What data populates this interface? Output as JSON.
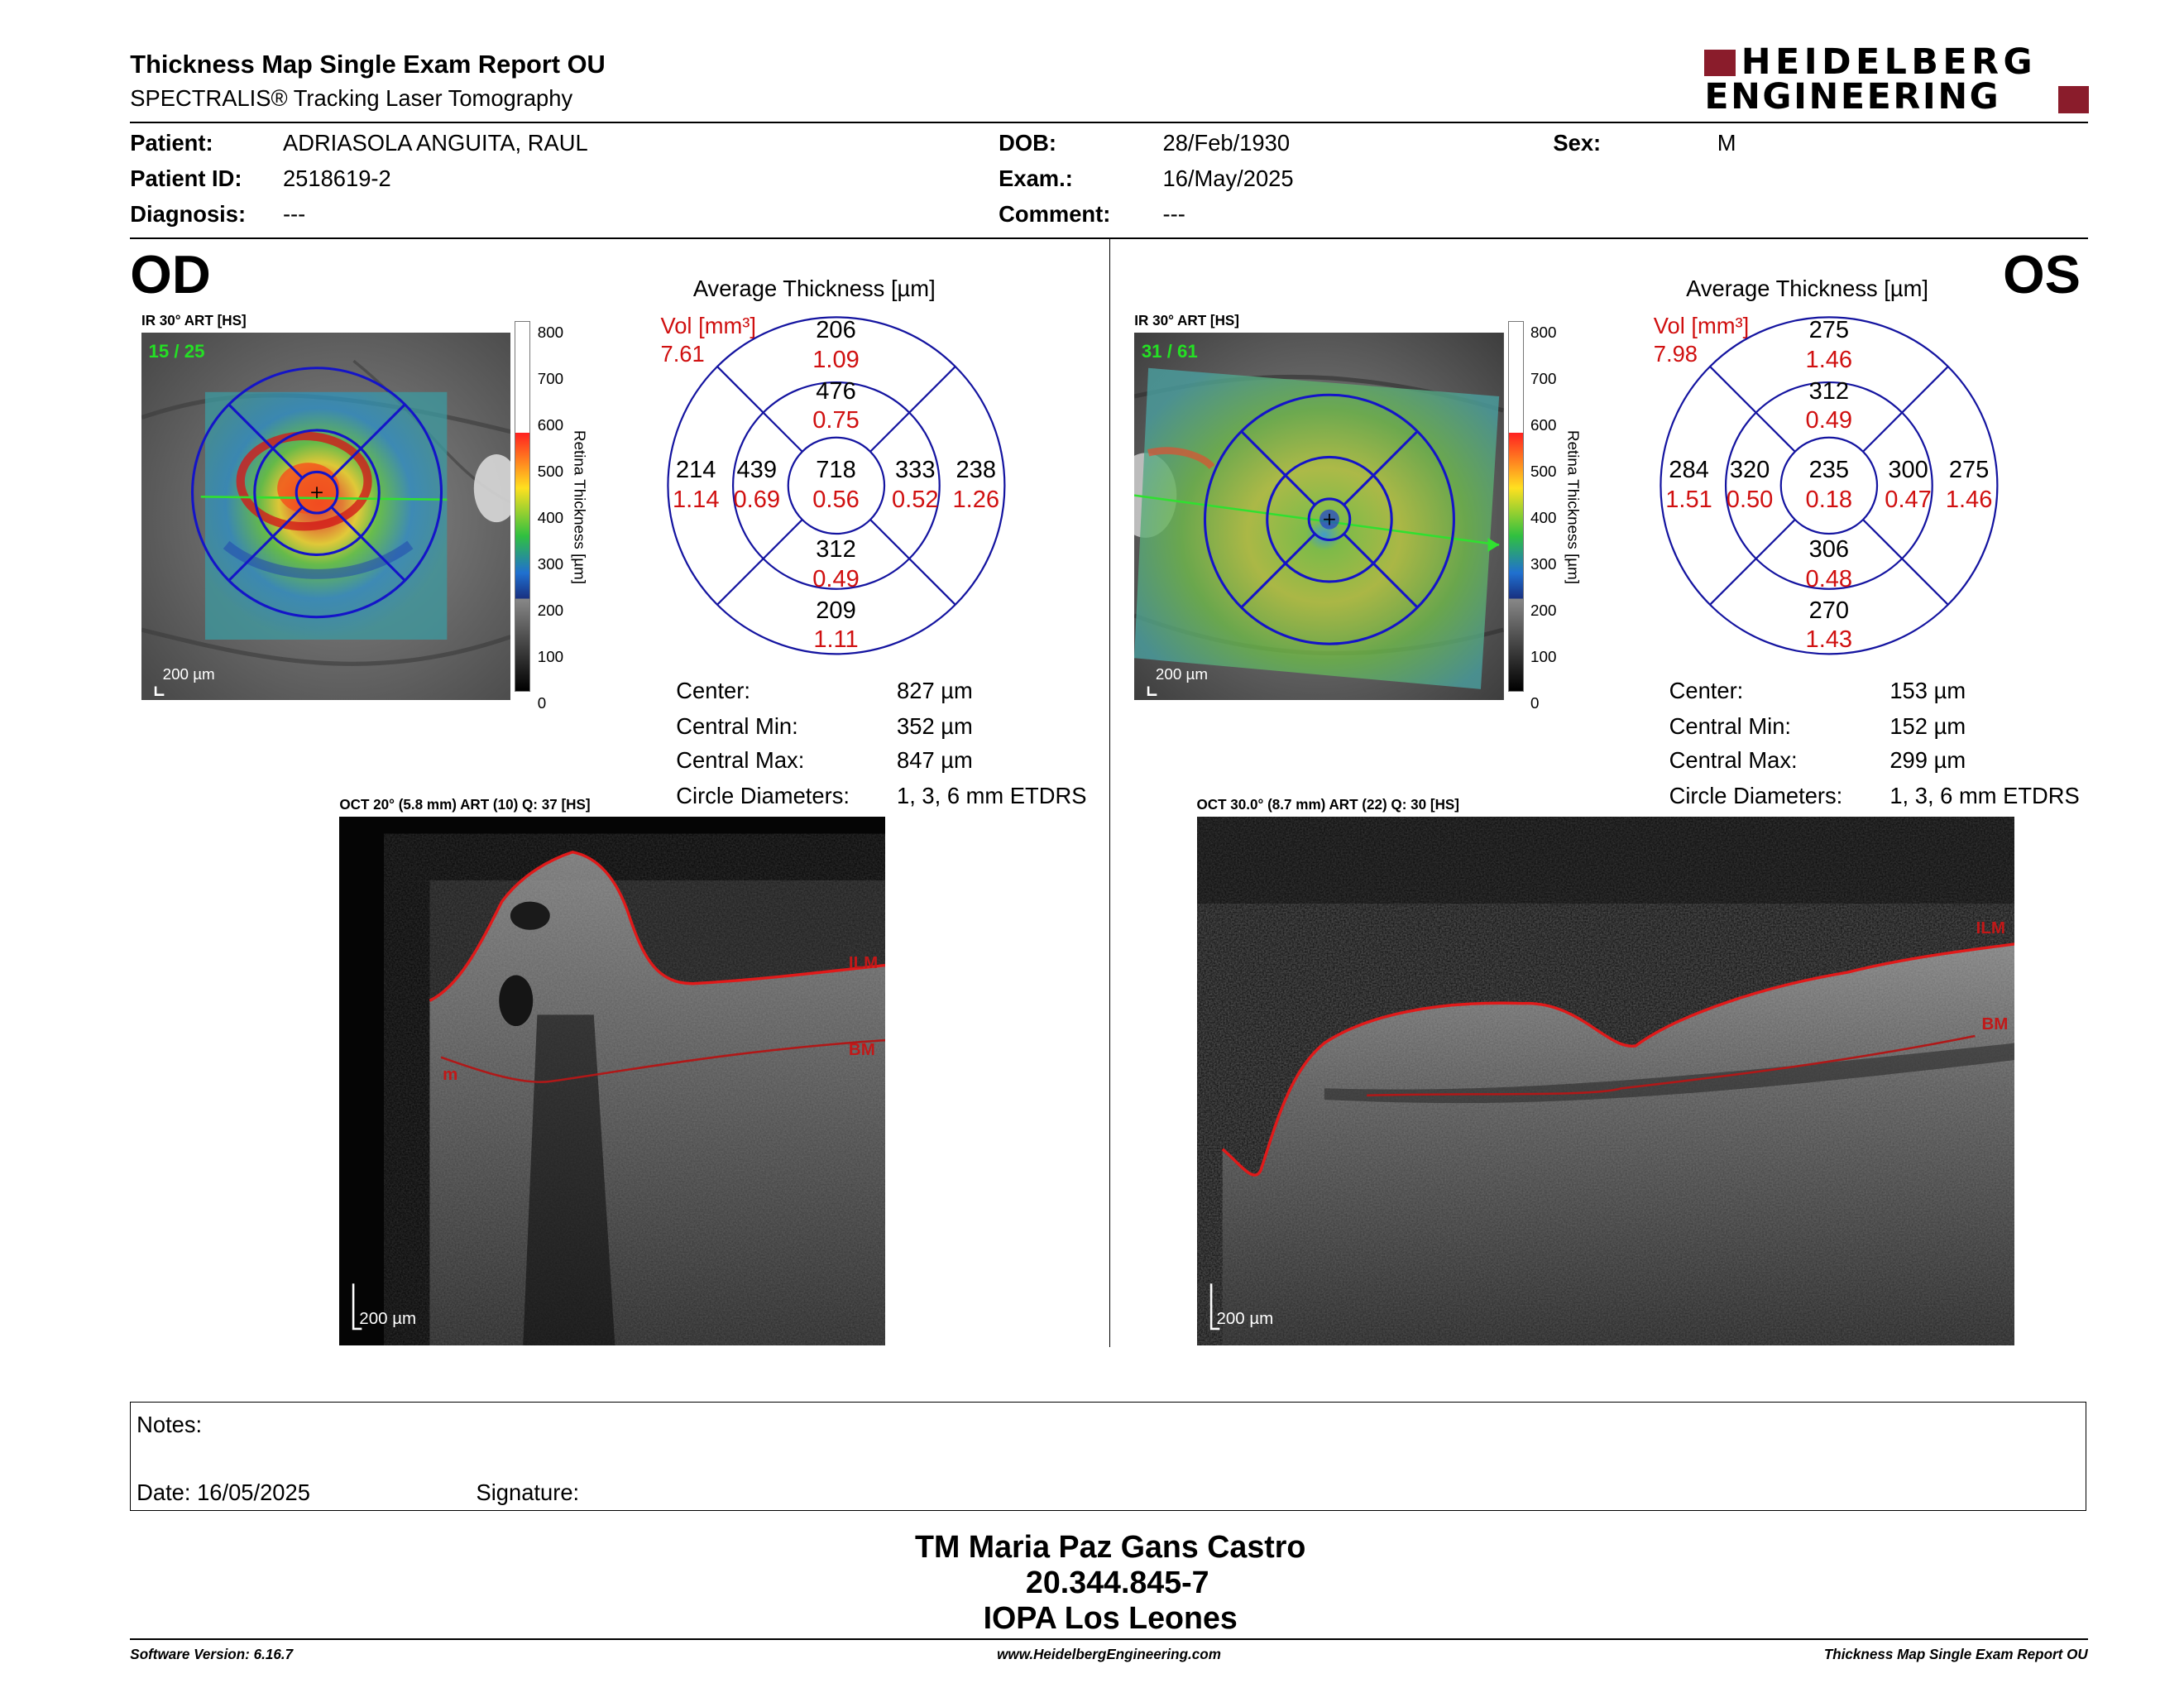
{
  "header": {
    "title": "Thickness Map Single Exam Report OU",
    "subtitle": "SPECTRALIS® Tracking Laser Tomography",
    "logo_line1": "HEIDELBERG",
    "logo_line2": "ENGINEERING"
  },
  "patient": {
    "patient_label": "Patient:",
    "patient_value": "ADRIASOLA ANGUITA, RAUL",
    "id_label": "Patient ID:",
    "id_value": "2518619-2",
    "diagnosis_label": "Diagnosis:",
    "diagnosis_value": "---",
    "dob_label": "DOB:",
    "dob_value": "28/Feb/1930",
    "exam_label": "Exam.:",
    "exam_value": "16/May/2025",
    "comment_label": "Comment:",
    "comment_value": "---",
    "sex_label": "Sex:",
    "sex_value": "M"
  },
  "od": {
    "eye": "OD",
    "ir_caption": "IR 30° ART [HS]",
    "frames": "15 / 25",
    "scale": "200 µm",
    "colorbar_ticks": [
      "800",
      "700",
      "600",
      "500",
      "400",
      "300",
      "200",
      "100",
      "0"
    ],
    "colorbar_label": "Retina Thickness [µm]",
    "avg_title": "Average Thickness [µm]",
    "vol_label": "Vol [mm³]",
    "vol_value": "7.61",
    "grid": {
      "center": {
        "t": "718",
        "v": "0.56"
      },
      "inner_sup": {
        "t": "476",
        "v": "0.75"
      },
      "inner_inf": {
        "t": "312",
        "v": "0.49"
      },
      "inner_left": {
        "t": "439",
        "v": "0.69"
      },
      "inner_right": {
        "t": "333",
        "v": "0.52"
      },
      "outer_sup": {
        "t": "206",
        "v": "1.09"
      },
      "outer_inf": {
        "t": "209",
        "v": "1.11"
      },
      "outer_left": {
        "t": "214",
        "v": "1.14"
      },
      "outer_right": {
        "t": "238",
        "v": "1.26"
      }
    },
    "stats": [
      {
        "label": "Center:",
        "value": "827 µm"
      },
      {
        "label": "Central Min:",
        "value": "352 µm"
      },
      {
        "label": "Central Max:",
        "value": "847 µm"
      },
      {
        "label": "Circle Diameters:",
        "value": "1, 3, 6 mm ETDRS"
      }
    ],
    "oct_caption": "OCT 20° (5.8 mm) ART (10) Q: 37 [HS]",
    "oct_scale": "200 µm",
    "ilm": "ILM",
    "bm": "BM",
    "m": "m"
  },
  "os": {
    "eye": "OS",
    "ir_caption": "IR 30° ART [HS]",
    "frames": "31 / 61",
    "scale": "200 µm",
    "colorbar_ticks": [
      "800",
      "700",
      "600",
      "500",
      "400",
      "300",
      "200",
      "100",
      "0"
    ],
    "colorbar_label": "Retina Thickness [µm]",
    "avg_title": "Average Thickness [µm]",
    "vol_label": "Vol [mm³]",
    "vol_value": "7.98",
    "grid": {
      "center": {
        "t": "235",
        "v": "0.18"
      },
      "inner_sup": {
        "t": "312",
        "v": "0.49"
      },
      "inner_inf": {
        "t": "306",
        "v": "0.48"
      },
      "inner_left": {
        "t": "320",
        "v": "0.50"
      },
      "inner_right": {
        "t": "300",
        "v": "0.47"
      },
      "outer_sup": {
        "t": "275",
        "v": "1.46"
      },
      "outer_inf": {
        "t": "270",
        "v": "1.43"
      },
      "outer_left": {
        "t": "284",
        "v": "1.51"
      },
      "outer_right": {
        "t": "275",
        "v": "1.46"
      }
    },
    "stats": [
      {
        "label": "Center:",
        "value": "153 µm"
      },
      {
        "label": "Central Min:",
        "value": "152 µm"
      },
      {
        "label": "Central Max:",
        "value": "299 µm"
      },
      {
        "label": "Circle Diameters:",
        "value": "1, 3, 6 mm ETDRS"
      }
    ],
    "oct_caption": "OCT 30.0° (8.7 mm) ART (22) Q: 30 [HS]",
    "oct_scale": "200 µm",
    "ilm": "ILM",
    "bm": "BM"
  },
  "notes": {
    "notes_label": "Notes:",
    "date_label": "Date: 16/05/2025",
    "signature_label": "Signature:"
  },
  "signature_block": {
    "line1": "TM Maria Paz Gans Castro",
    "line2": "20.344.845-7",
    "line3": "IOPA Los Leones"
  },
  "footer": {
    "software": "Software Version: 6.16.7",
    "website": "www.HeidelbergEngineering.com",
    "report": "Thickness Map Single Exam Report OU"
  }
}
